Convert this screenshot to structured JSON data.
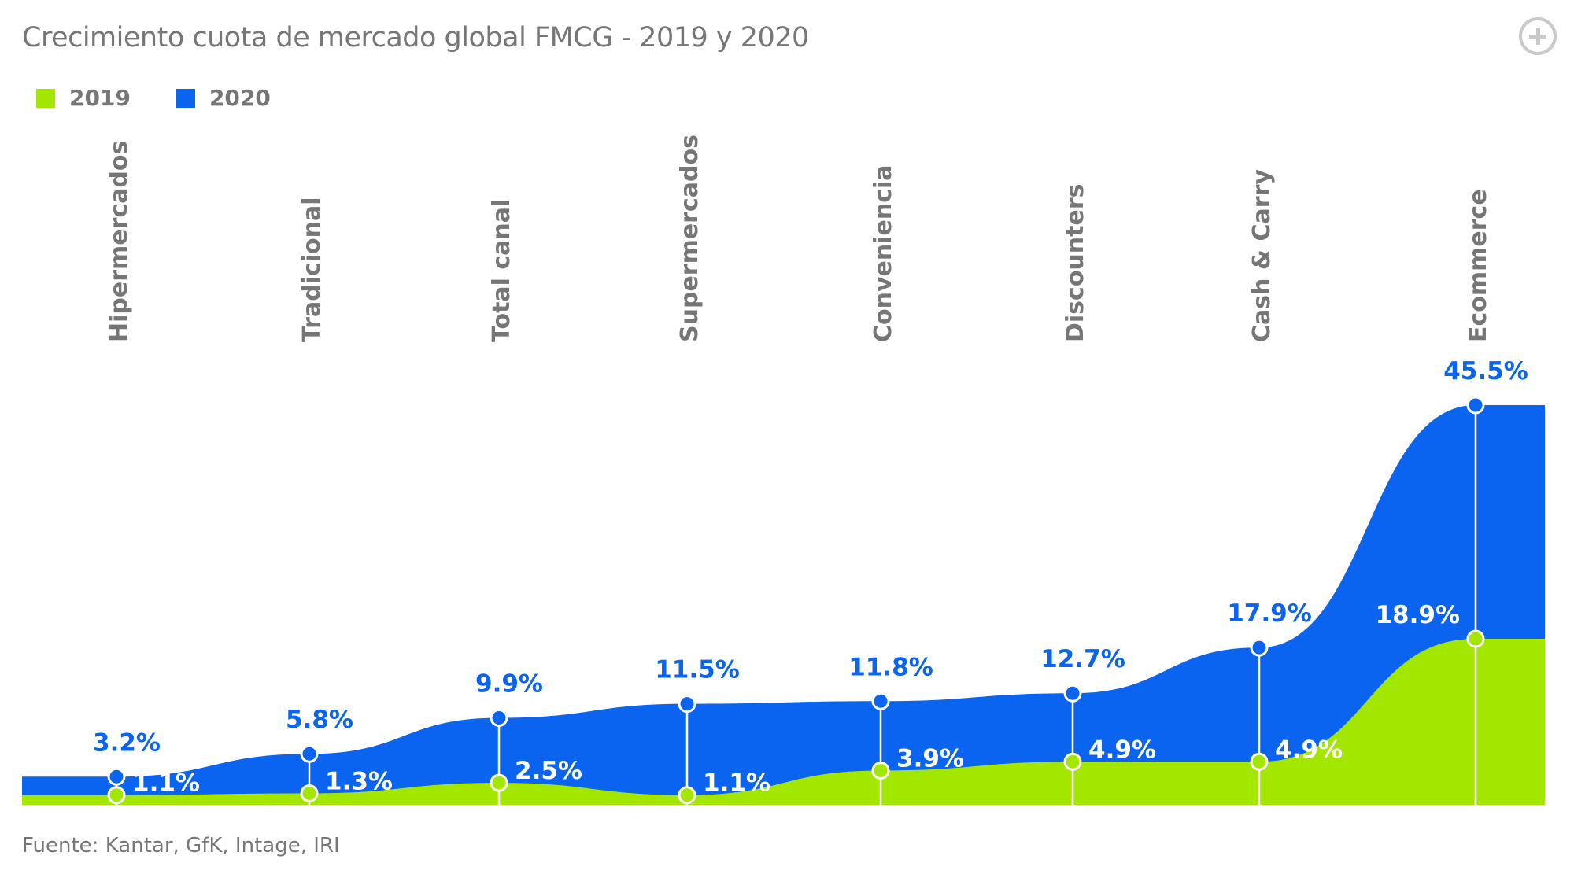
{
  "title": "Crecimiento cuota de mercado global FMCG - 2019 y 2020",
  "source": "Fuente: Kantar, GfK, Intage, IRI",
  "legend": [
    {
      "label": "2019",
      "color": "#a3e600"
    },
    {
      "label": "2020",
      "color": "#0a64f0"
    }
  ],
  "icons": {
    "expand": "plus-circle-icon"
  },
  "chart_data": {
    "type": "area",
    "categories": [
      "Hipermercados",
      "Tradicional",
      "Total canal",
      "Supermercados",
      "Conveniencia",
      "Discounters",
      "Cash & Carry",
      "Ecommerce"
    ],
    "series": [
      {
        "name": "2019",
        "color": "#a3e600",
        "values": [
          1.1,
          1.3,
          2.5,
          1.1,
          3.9,
          4.9,
          4.9,
          18.9
        ],
        "labels": [
          "1.1%",
          "1.3%",
          "2.5%",
          "1.1%",
          "3.9%",
          "4.9%",
          "4.9%",
          "18.9%"
        ]
      },
      {
        "name": "2020",
        "color": "#0a64f0",
        "values": [
          3.2,
          5.8,
          9.9,
          11.5,
          11.8,
          12.7,
          17.9,
          45.5
        ],
        "labels": [
          "3.2%",
          "5.8%",
          "9.9%",
          "11.5%",
          "11.8%",
          "12.7%",
          "17.9%",
          "45.5%"
        ]
      }
    ],
    "ylim": [
      0,
      50
    ],
    "grid": false,
    "legend_position": "top-left"
  }
}
